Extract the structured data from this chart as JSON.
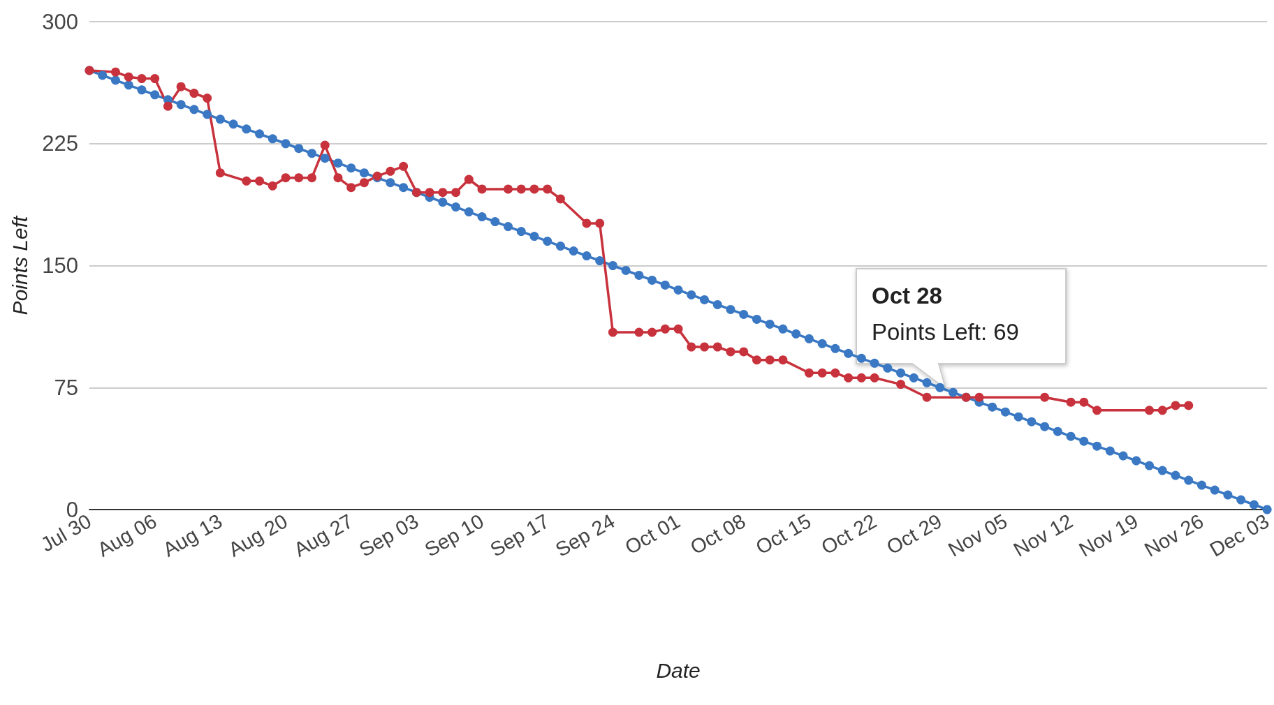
{
  "chart_data": {
    "type": "line",
    "xlabel": "Date",
    "ylabel": "Points Left",
    "categories": [
      "Jul 30",
      null,
      null,
      null,
      null,
      "Aug 06",
      null,
      null,
      null,
      null,
      "Aug 13",
      null,
      null,
      null,
      null,
      "Aug 20",
      null,
      null,
      null,
      null,
      "Aug 27",
      null,
      null,
      null,
      null,
      "Sep 03",
      null,
      null,
      null,
      null,
      "Sep 10",
      null,
      null,
      null,
      null,
      "Sep 17",
      null,
      null,
      null,
      null,
      "Sep 24",
      null,
      null,
      null,
      null,
      "Oct 01",
      null,
      null,
      null,
      null,
      "Oct 08",
      null,
      null,
      null,
      null,
      "Oct 15",
      null,
      null,
      null,
      null,
      "Oct 22",
      null,
      null,
      null,
      null,
      "Oct 29",
      null,
      null,
      null,
      null,
      "Nov 05",
      null,
      null,
      null,
      null,
      "Nov 12",
      null,
      null,
      null,
      null,
      "Nov 19",
      null,
      null,
      null,
      null,
      "Nov 26",
      null,
      null,
      null,
      null,
      "Dec 03"
    ],
    "series": [
      {
        "color": "#3a78c3",
        "values": [
          270,
          267,
          264,
          261,
          258,
          255,
          252,
          249,
          246,
          243,
          240,
          237,
          234,
          231,
          228,
          225,
          222,
          219,
          216,
          213,
          210,
          207,
          204,
          201,
          198,
          195,
          192,
          189,
          186,
          183,
          180,
          177,
          174,
          171,
          168,
          165,
          162,
          159,
          156,
          153,
          150,
          147,
          144,
          141,
          138,
          135,
          132,
          129,
          126,
          123,
          120,
          117,
          114,
          111,
          108,
          105,
          102,
          99,
          96,
          93,
          90,
          87,
          84,
          81,
          78,
          75,
          72,
          69,
          66,
          63,
          60,
          57,
          54,
          51,
          48,
          45,
          42,
          39,
          36,
          33,
          30,
          27,
          24,
          21,
          18,
          15,
          12,
          9,
          6,
          3,
          0
        ]
      },
      {
        "color": "#c8323c",
        "values": [
          270,
          null,
          269,
          266,
          265,
          265,
          248,
          260,
          256,
          253,
          207,
          null,
          202,
          202,
          199,
          204,
          204,
          204,
          224,
          204,
          198,
          201,
          205,
          208,
          211,
          195,
          195,
          195,
          195,
          203,
          197,
          null,
          197,
          197,
          197,
          197,
          191,
          null,
          176,
          176,
          109,
          null,
          109,
          109,
          111,
          111,
          100,
          100,
          100,
          97,
          97,
          92,
          92,
          92,
          null,
          84,
          84,
          84,
          81,
          81,
          81,
          null,
          77,
          null,
          69,
          null,
          null,
          69,
          69,
          null,
          null,
          null,
          null,
          69,
          null,
          66,
          66,
          61,
          null,
          null,
          null,
          61,
          61,
          64,
          64,
          null,
          null,
          null,
          null,
          null,
          null
        ]
      }
    ],
    "ylim": [
      0,
      300
    ],
    "yticks": [
      0,
      75,
      150,
      225,
      300
    ],
    "grid": "y",
    "marker": "circle",
    "line_style": "solid",
    "annotations": [
      "Oct 28\nPoints Left: 69"
    ]
  }
}
